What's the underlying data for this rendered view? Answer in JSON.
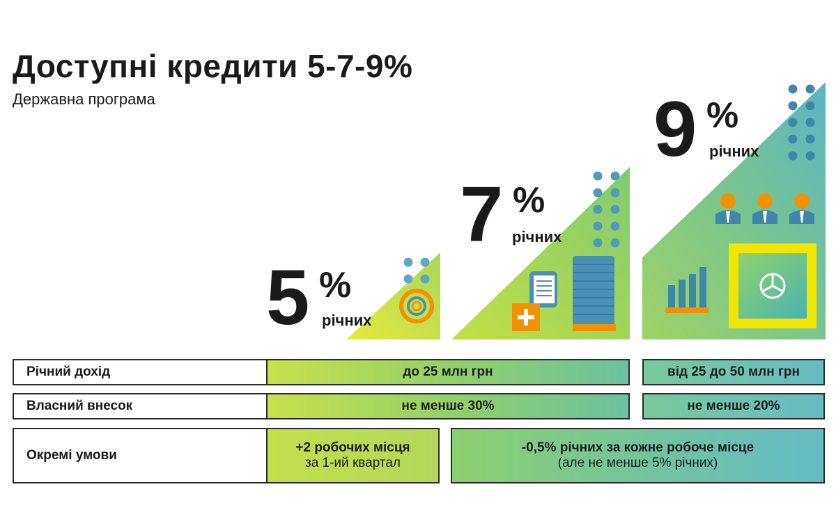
{
  "header": {
    "title": "Доступні кредити 5-7-9%",
    "subtitle": "Державна програма"
  },
  "tiers": [
    {
      "rate": "5",
      "percent_sign": "%",
      "per_year": "річних"
    },
    {
      "rate": "7",
      "percent_sign": "%",
      "per_year": "річних"
    },
    {
      "rate": "9",
      "percent_sign": "%",
      "per_year": "річних"
    }
  ],
  "table": {
    "rows": [
      {
        "label": "Річний дохід",
        "left_value": "до 25 млн грн",
        "right_value": "від 25 до 50 млн грн"
      },
      {
        "label": "Власний внесок",
        "left_value": "не менше 30%",
        "right_value": "не менше 20%"
      },
      {
        "label": "Окремі умови",
        "left_line1": "+2 робочих місця",
        "left_line2": "за 1-ий квартал",
        "right_line1": "-0,5% річних за кожне робоче місце",
        "right_line2": "(але не менше 5% річних)"
      }
    ]
  },
  "colors": {
    "lime": "#c6df4a",
    "teal": "#64bcc5",
    "steel_blue": "#4a8fb5",
    "orange": "#f39200",
    "yellow": "#f2e600",
    "text": "#1a1a1a"
  },
  "icons": [
    "target-icon",
    "document-icon",
    "plus-icon",
    "coin-stack-icon",
    "people-icon",
    "bar-chart-icon",
    "safe-icon"
  ]
}
